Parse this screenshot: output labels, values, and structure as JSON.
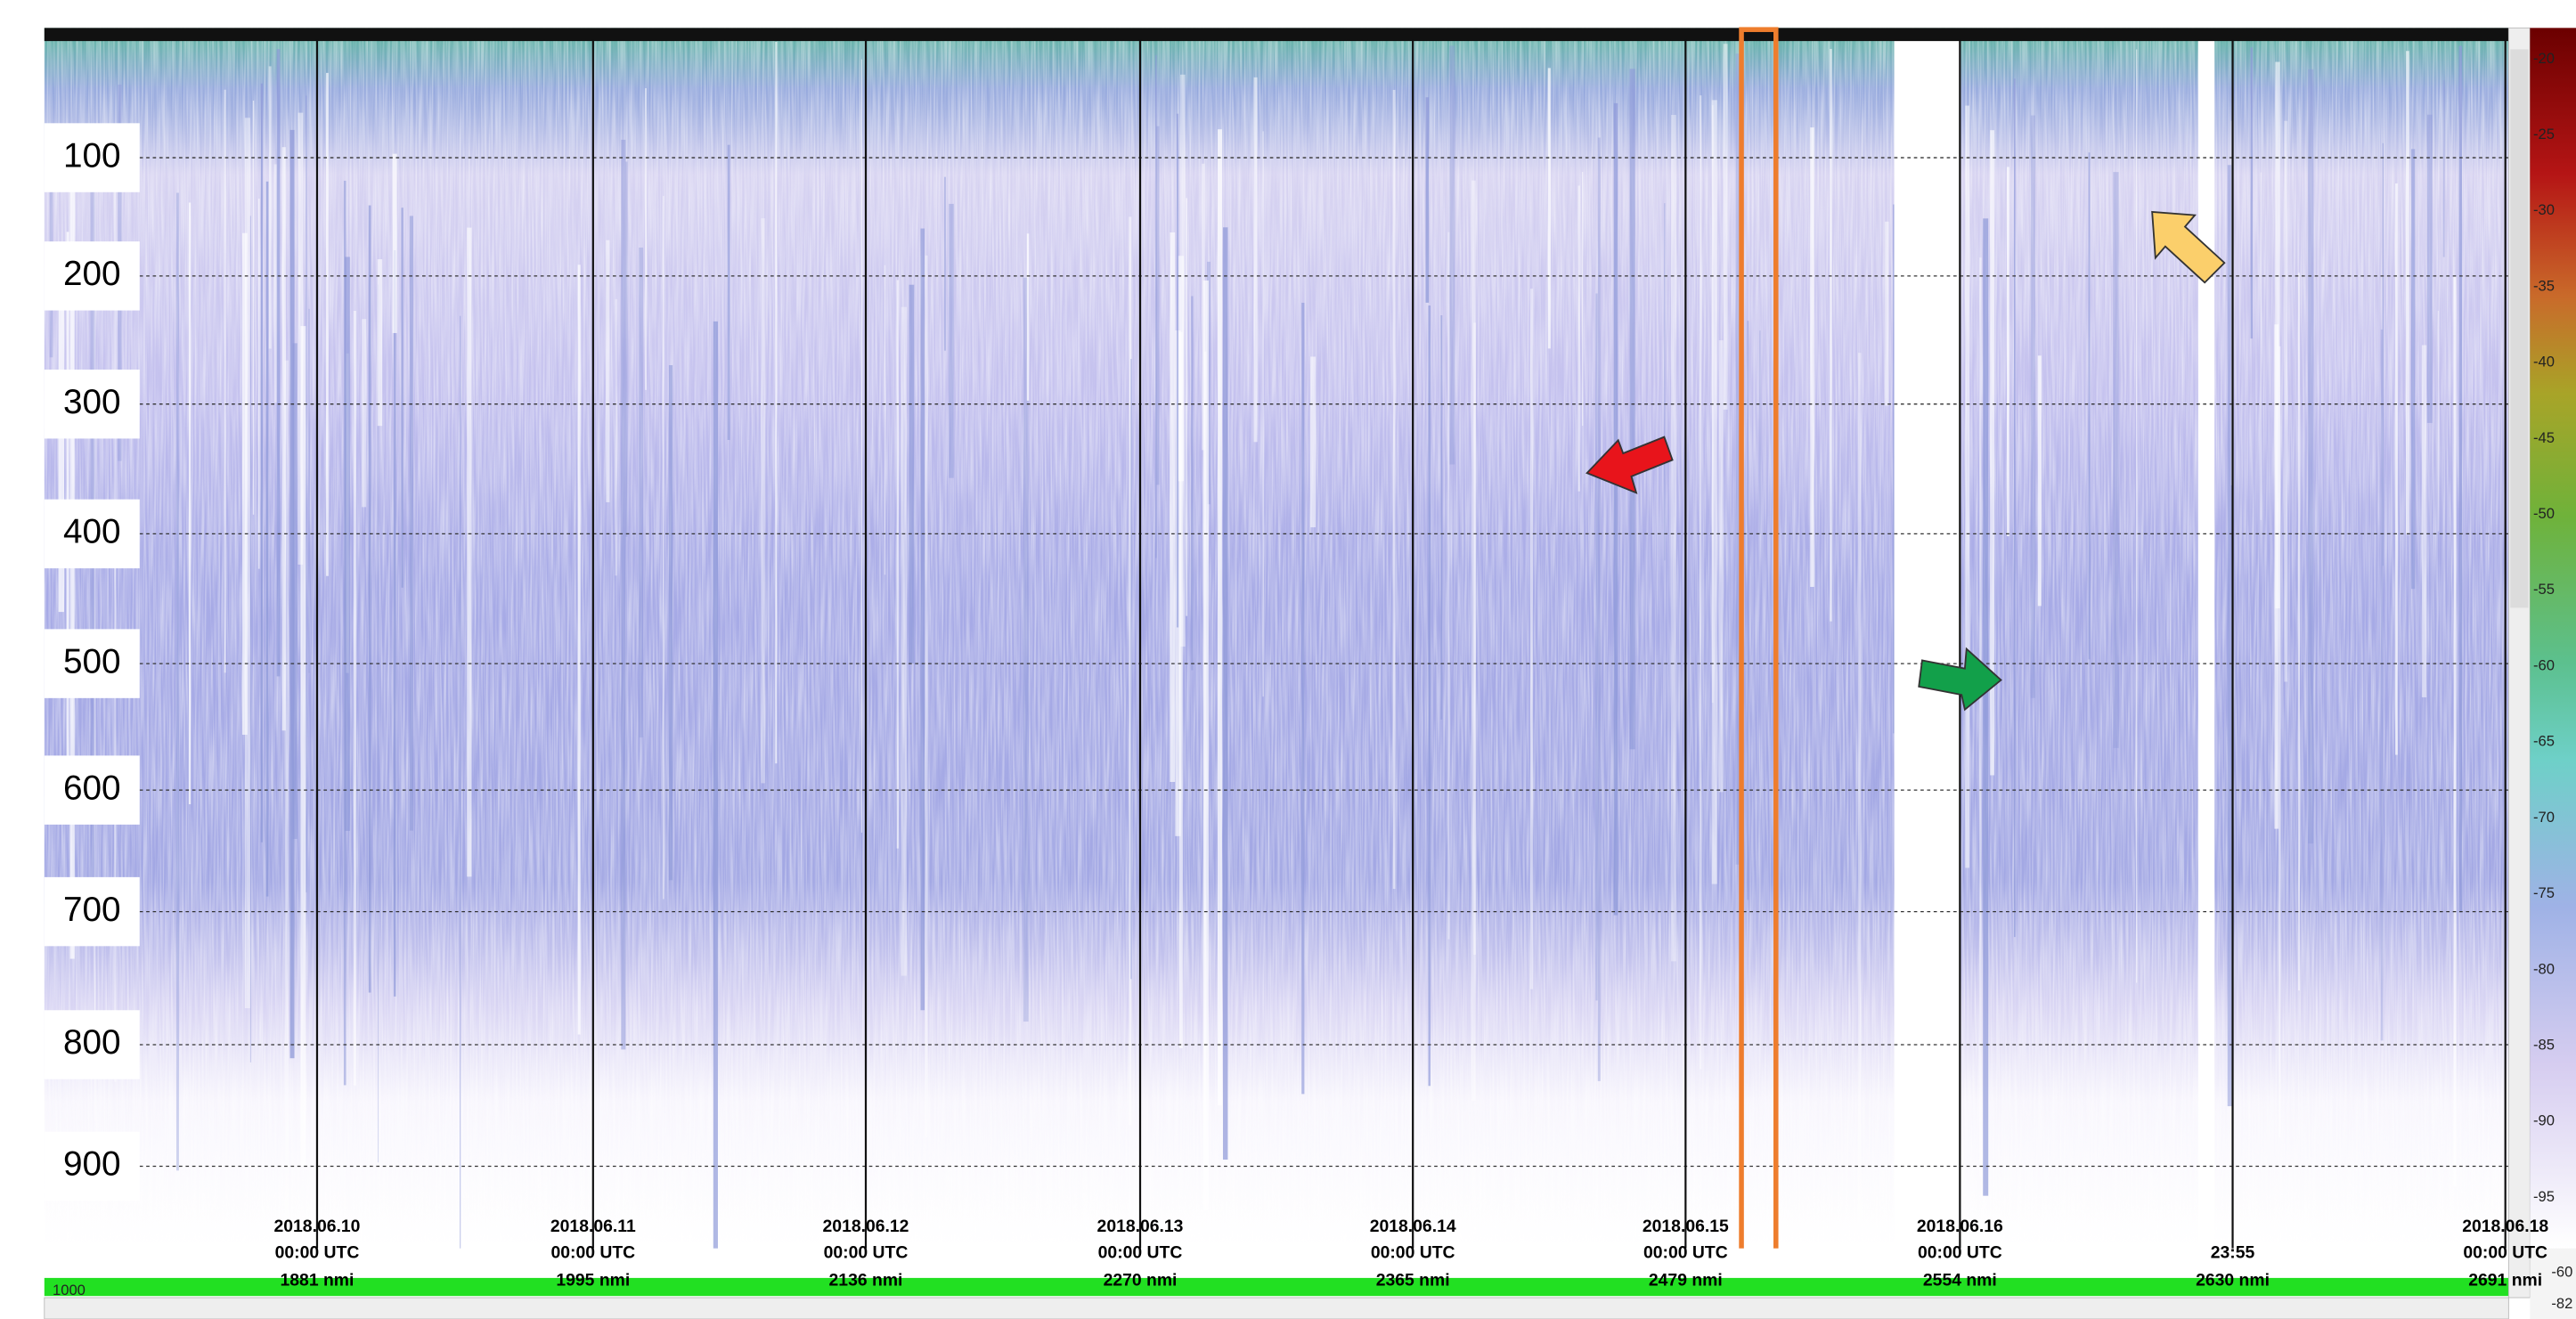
{
  "depth_labels": [
    "100",
    "200",
    "300",
    "400",
    "500",
    "600",
    "700",
    "800",
    "900"
  ],
  "time_markers": [
    {
      "date": "2018.06.10",
      "time": "00:00 UTC",
      "distance": "1881 nmi"
    },
    {
      "date": "2018.06.11",
      "time": "00:00 UTC",
      "distance": "1995 nmi"
    },
    {
      "date": "2018.06.12",
      "time": "00:00 UTC",
      "distance": "2136 nmi"
    },
    {
      "date": "2018.06.13",
      "time": "00:00 UTC",
      "distance": "2270 nmi"
    },
    {
      "date": "2018.06.14",
      "time": "00:00 UTC",
      "distance": "2365 nmi"
    },
    {
      "date": "2018.06.15",
      "time": "00:00 UTC",
      "distance": "2479 nmi"
    },
    {
      "date": "2018.06.16",
      "time": "00:00 UTC",
      "distance": "2554 nmi"
    },
    {
      "time": "23:55",
      "distance": "2630 nmi"
    },
    {
      "date": "2018.06.18",
      "time": "00:00 UTC",
      "distance": "2691 nmi"
    }
  ],
  "color_scale": [
    "-20",
    "-25",
    "-30",
    "-35",
    "-40",
    "-45",
    "-50",
    "-55",
    "-60",
    "-65",
    "-70",
    "-75",
    "-80",
    "-85",
    "-90",
    "-95"
  ],
  "scale_bottom": [
    "-60",
    "-82"
  ],
  "range_label": "1000"
}
